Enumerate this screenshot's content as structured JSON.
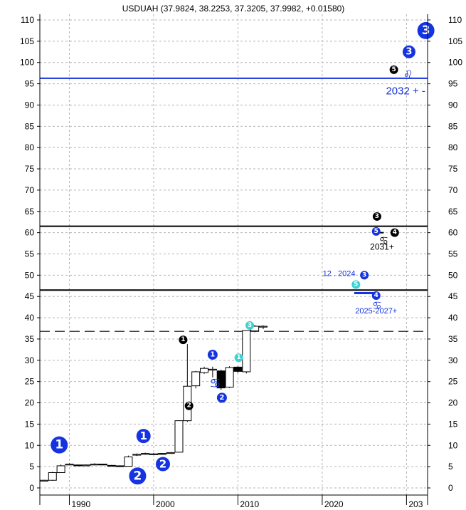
{
  "chart_data": {
    "type": "candlestick",
    "title": "USDUAH (37.9824, 38.2253, 37.3205, 37.9982, +0.01580)",
    "xlabel": "",
    "ylabel": "",
    "x_ticks": [
      "1990",
      "2000",
      "2010",
      "2020",
      "203"
    ],
    "y_ticks": [
      0,
      5,
      10,
      15,
      20,
      25,
      30,
      35,
      40,
      45,
      50,
      55,
      60,
      65,
      70,
      75,
      80,
      85,
      90,
      95,
      100,
      105,
      110
    ],
    "xlim": [
      1986.5,
      2032.5
    ],
    "ylim": [
      -2,
      115
    ],
    "grid": true,
    "candles": [
      {
        "year": 1987,
        "open": 1.8,
        "high": 1.9,
        "low": 1.7,
        "close": 1.8
      },
      {
        "year": 1988,
        "open": 1.8,
        "high": 3.8,
        "low": 1.7,
        "close": 3.6
      },
      {
        "year": 1989,
        "open": 3.6,
        "high": 5.5,
        "low": 3.6,
        "close": 5.2
      },
      {
        "year": 1990,
        "open": 5.5,
        "high": 5.8,
        "low": 5.3,
        "close": 5.6
      },
      {
        "year": 1991,
        "open": 5.4,
        "high": 5.5,
        "low": 5.2,
        "close": 5.3
      },
      {
        "year": 1992,
        "open": 5.3,
        "high": 5.5,
        "low": 5.1,
        "close": 5.4
      },
      {
        "year": 1993,
        "open": 5.4,
        "high": 5.8,
        "low": 5.3,
        "close": 5.6
      },
      {
        "year": 1994,
        "open": 5.6,
        "high": 5.7,
        "low": 5.3,
        "close": 5.4
      },
      {
        "year": 1995,
        "open": 5.3,
        "high": 5.4,
        "low": 5.1,
        "close": 5.2
      },
      {
        "year": 1996,
        "open": 5.2,
        "high": 5.3,
        "low": 5.0,
        "close": 5.1
      },
      {
        "year": 1997,
        "open": 5.1,
        "high": 7.6,
        "low": 5.0,
        "close": 7.3
      },
      {
        "year": 1998,
        "open": 7.8,
        "high": 8.1,
        "low": 7.5,
        "close": 7.9
      },
      {
        "year": 1999,
        "open": 8.0,
        "high": 8.3,
        "low": 7.8,
        "close": 8.1
      },
      {
        "year": 2000,
        "open": 8.0,
        "high": 8.2,
        "low": 7.9,
        "close": 8.0
      },
      {
        "year": 2001,
        "open": 8.1,
        "high": 8.2,
        "low": 7.9,
        "close": 8.0
      },
      {
        "year": 2002,
        "open": 8.2,
        "high": 8.4,
        "low": 8.1,
        "close": 8.3
      },
      {
        "year": 2003,
        "open": 8.4,
        "high": 15.9,
        "low": 8.3,
        "close": 15.8
      },
      {
        "year": 2004,
        "open": 15.8,
        "high": 33.8,
        "low": 15.5,
        "close": 23.9
      },
      {
        "year": 2005,
        "open": 24.0,
        "high": 27.5,
        "low": 23.4,
        "close": 27.3
      },
      {
        "year": 2006,
        "open": 27.1,
        "high": 28.5,
        "low": 26.8,
        "close": 28.1
      },
      {
        "year": 2007,
        "open": 27.8,
        "high": 28.5,
        "low": 26.0,
        "close": 27.9
      },
      {
        "year": 2008,
        "open": 27.5,
        "high": 27.8,
        "low": 23.0,
        "close": 23.5
      },
      {
        "year": 2009,
        "open": 23.7,
        "high": 28.6,
        "low": 23.5,
        "close": 28.3
      },
      {
        "year": 2010,
        "open": 28.4,
        "high": 28.6,
        "low": 27.0,
        "close": 27.4
      },
      {
        "year": 2011,
        "open": 27.3,
        "high": 37.1,
        "low": 26.9,
        "close": 37.0
      },
      {
        "year": 2012,
        "open": 36.9,
        "high": 38.3,
        "low": 36.6,
        "close": 38.0
      },
      {
        "year": 2013,
        "open": 37.98,
        "high": 38.23,
        "low": 37.32,
        "close": 38.0
      }
    ],
    "horizontal_lines": [
      {
        "y": 96.3,
        "color": "#1533e0",
        "style": "solid"
      },
      {
        "y": 61.5,
        "color": "#000000",
        "style": "solid"
      },
      {
        "y": 46.5,
        "color": "#000000",
        "style": "solid"
      },
      {
        "y": 36.8,
        "color": "#000000",
        "style": "dashed"
      }
    ],
    "blue_segment": {
      "x": [
        2023.8,
        2026.3
      ],
      "y": 45.8
    },
    "black_segment": {
      "x": [
        2026.0,
        2027.3
      ],
      "y": 60.0
    },
    "labels": [
      {
        "text": "2032 + -",
        "x": 2029.9,
        "y": 92.5,
        "color": "#1533e0",
        "size": 15
      },
      {
        "text": "2031+",
        "x": 2027.1,
        "y": 56.0,
        "color": "#000000",
        "size": 12
      },
      {
        "text": "12 . 2024",
        "x": 2022.0,
        "y": 49.8,
        "color": "#1533e0",
        "size": 11
      },
      {
        "text": "2025-2027+",
        "x": 2026.4,
        "y": 41.0,
        "color": "#1533e0",
        "size": 11
      }
    ],
    "markers": [
      {
        "num": "1",
        "style": "blue",
        "x": 1988.8,
        "y": 10.1,
        "r": 12
      },
      {
        "num": "2",
        "style": "blue",
        "x": 1998.1,
        "y": 2.8,
        "r": 12
      },
      {
        "num": "1",
        "style": "blue",
        "x": 1998.8,
        "y": 12.2,
        "r": 10
      },
      {
        "num": "2",
        "style": "blue",
        "x": 2001.1,
        "y": 5.6,
        "r": 10
      },
      {
        "num": "1",
        "style": "black",
        "x": 2003.5,
        "y": 34.8,
        "r": 6
      },
      {
        "num": "2",
        "style": "black",
        "x": 2004.2,
        "y": 19.3,
        "r": 6
      },
      {
        "num": "1",
        "style": "blue",
        "x": 2007.0,
        "y": 31.3,
        "r": 7
      },
      {
        "num": "2",
        "style": "blue",
        "x": 2008.1,
        "y": 21.2,
        "r": 7
      },
      {
        "num": "1",
        "style": "cyan",
        "x": 2010.1,
        "y": 30.6,
        "r": 6
      },
      {
        "num": "3",
        "style": "cyan",
        "x": 2011.4,
        "y": 38.2,
        "r": 6
      },
      {
        "num": "5",
        "style": "cyan",
        "x": 2024.0,
        "y": 47.8,
        "r": 6
      },
      {
        "num": "3",
        "style": "blue",
        "x": 2025.0,
        "y": 50.0,
        "r": 6
      },
      {
        "num": "4",
        "style": "blue",
        "x": 2026.4,
        "y": 45.2,
        "r": 6
      },
      {
        "num": "3",
        "style": "black",
        "x": 2026.5,
        "y": 63.8,
        "r": 6
      },
      {
        "num": "5",
        "style": "blue",
        "x": 2026.4,
        "y": 60.3,
        "r": 6
      },
      {
        "num": "4",
        "style": "black",
        "x": 2028.6,
        "y": 60.0,
        "r": 6
      },
      {
        "num": "5",
        "style": "black",
        "x": 2028.5,
        "y": 98.3,
        "r": 6
      },
      {
        "num": "3",
        "style": "blue",
        "x": 2030.3,
        "y": 102.5,
        "r": 9
      },
      {
        "num": "3",
        "style": "blue",
        "x": 2032.3,
        "y": 107.5,
        "r": 12
      }
    ],
    "glyphs": [
      {
        "char": "♋",
        "x": 2007.3,
        "y": 24.5,
        "color": "#1533e0",
        "size": 18
      },
      {
        "char": "♋",
        "x": 2026.5,
        "y": 42.9,
        "color": "#1533e0",
        "size": 15
      },
      {
        "char": "♋",
        "x": 2027.3,
        "y": 58.1,
        "color": "#000000",
        "size": 15
      },
      {
        "char": "♌",
        "x": 2030.2,
        "y": 97.2,
        "color": "#1533e0",
        "size": 16
      }
    ]
  }
}
